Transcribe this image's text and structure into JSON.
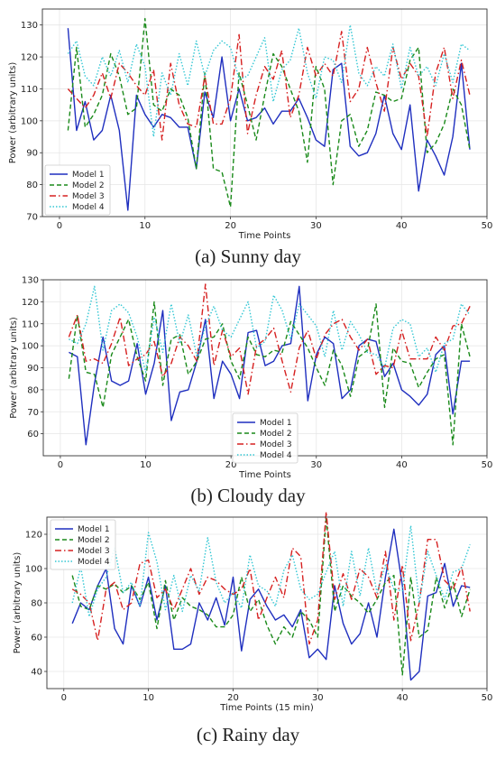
{
  "chart_data": [
    {
      "type": "line",
      "caption": "(a) Sunny day",
      "xlabel": "Time Points",
      "ylabel": "Power (arbitrary units)",
      "xlim": [
        -2,
        50
      ],
      "ylim": [
        70,
        135
      ],
      "xticks": [
        0,
        10,
        20,
        30,
        40,
        50
      ],
      "yticks": [
        70,
        80,
        90,
        100,
        110,
        120,
        130
      ],
      "grid": true,
      "legend_position": "lower-left",
      "x": [
        1,
        2,
        3,
        4,
        5,
        6,
        7,
        8,
        9,
        10,
        11,
        12,
        13,
        14,
        15,
        16,
        17,
        18,
        19,
        20,
        21,
        22,
        23,
        24,
        25,
        26,
        27,
        28,
        29,
        30,
        31,
        32,
        33,
        34,
        35,
        36,
        37,
        38,
        39,
        40,
        41,
        42,
        43,
        44,
        45,
        46,
        47,
        48
      ],
      "series": [
        {
          "name": "Model 1",
          "color": "#1f2fbf",
          "dash": "solid",
          "values": [
            129,
            97,
            106,
            94,
            97,
            108,
            97,
            72,
            108,
            102,
            98,
            102,
            101,
            98,
            98,
            85,
            109,
            101,
            120,
            100,
            110,
            100,
            101,
            104,
            99,
            103,
            103,
            107,
            101,
            94,
            92,
            116,
            118,
            92,
            89,
            90,
            96,
            108,
            96,
            91,
            105,
            78,
            94,
            89,
            83,
            95,
            118,
            91
          ]
        },
        {
          "name": "Model 2",
          "color": "#1a8a1a",
          "dash": "dashed",
          "values": [
            97,
            123,
            98,
            102,
            108,
            121,
            114,
            102,
            104,
            132,
            105,
            103,
            110,
            108,
            101,
            85,
            115,
            85,
            84,
            73,
            115,
            105,
            94,
            108,
            121,
            117,
            110,
            103,
            87,
            117,
            110,
            80,
            100,
            102,
            92,
            97,
            109,
            108,
            106,
            107,
            119,
            123,
            90,
            93,
            99,
            110,
            105,
            91
          ]
        },
        {
          "name": "Model 3",
          "color": "#d62020",
          "dash": "dashdot",
          "values": [
            110,
            107,
            104,
            108,
            115,
            107,
            118,
            115,
            111,
            108,
            116,
            94,
            118,
            105,
            99,
            98,
            114,
            99,
            99,
            107,
            127,
            96,
            108,
            117,
            113,
            122,
            101,
            108,
            123,
            114,
            118,
            114,
            128,
            106,
            110,
            123,
            112,
            103,
            123,
            113,
            118,
            114,
            95,
            115,
            123,
            107,
            119,
            108
          ]
        },
        {
          "name": "Model 4",
          "color": "#33c7d4",
          "dash": "dotted",
          "values": [
            121,
            125,
            114,
            111,
            120,
            114,
            122,
            112,
            124,
            117,
            95,
            115,
            108,
            121,
            111,
            125,
            114,
            122,
            125,
            123,
            113,
            114,
            120,
            126,
            106,
            116,
            119,
            129,
            115,
            107,
            120,
            119,
            112,
            130,
            115,
            111,
            117,
            114,
            124,
            110,
            123,
            114,
            117,
            111,
            121,
            112,
            124,
            122
          ]
        }
      ]
    },
    {
      "type": "line",
      "caption": "(b) Cloudy day",
      "xlabel": "Time Points",
      "ylabel": "Power (arbitrary units)",
      "xlim": [
        -2,
        50
      ],
      "ylim": [
        50,
        130
      ],
      "xticks": [
        0,
        10,
        20,
        30,
        40,
        50
      ],
      "yticks": [
        60,
        70,
        80,
        90,
        100,
        110,
        120,
        130
      ],
      "grid": true,
      "legend_position": "lower-center",
      "x": [
        1,
        2,
        3,
        4,
        5,
        6,
        7,
        8,
        9,
        10,
        11,
        12,
        13,
        14,
        15,
        16,
        17,
        18,
        19,
        20,
        21,
        22,
        23,
        24,
        25,
        26,
        27,
        28,
        29,
        30,
        31,
        32,
        33,
        34,
        35,
        36,
        37,
        38,
        39,
        40,
        41,
        42,
        43,
        44,
        45,
        46,
        47,
        48
      ],
      "series": [
        {
          "name": "Model 1",
          "color": "#1f2fbf",
          "dash": "solid",
          "values": [
            97,
            95,
            55,
            83,
            104,
            84,
            82,
            84,
            101,
            78,
            92,
            116,
            66,
            79,
            80,
            93,
            112,
            76,
            93,
            87,
            76,
            106,
            107,
            91,
            93,
            100,
            101,
            127,
            75,
            96,
            104,
            101,
            76,
            80,
            100,
            103,
            102,
            86,
            92,
            80,
            77,
            73,
            78,
            96,
            100,
            69,
            93,
            93
          ]
        },
        {
          "name": "Model 2",
          "color": "#1a8a1a",
          "dash": "dashed",
          "values": [
            85,
            114,
            88,
            87,
            72,
            96,
            104,
            112,
            95,
            84,
            120,
            82,
            103,
            105,
            87,
            93,
            103,
            104,
            110,
            93,
            85,
            104,
            96,
            95,
            98,
            97,
            111,
            105,
            99,
            90,
            82,
            98,
            91,
            77,
            95,
            98,
            119,
            72,
            99,
            93,
            92,
            81,
            88,
            94,
            96,
            55,
            110,
            95
          ]
        },
        {
          "name": "Model 3",
          "color": "#d62020",
          "dash": "dashdot",
          "values": [
            104,
            114,
            93,
            94,
            92,
            101,
            113,
            91,
            94,
            96,
            102,
            86,
            92,
            104,
            100,
            93,
            128,
            91,
            107,
            95,
            99,
            78,
            100,
            103,
            108,
            93,
            79,
            99,
            107,
            94,
            105,
            110,
            112,
            104,
            98,
            103,
            87,
            91,
            90,
            107,
            94,
            94,
            94,
            104,
            98,
            109,
            110,
            118
          ]
        },
        {
          "name": "Model 4",
          "color": "#33c7d4",
          "dash": "dotted",
          "values": [
            103,
            101,
            110,
            127,
            98,
            116,
            119,
            115,
            104,
            88,
            113,
            97,
            119,
            101,
            114,
            95,
            109,
            118,
            107,
            104,
            112,
            120,
            99,
            102,
            123,
            116,
            103,
            119,
            114,
            109,
            95,
            116,
            98,
            111,
            105,
            97,
            96,
            90,
            108,
            112,
            110,
            95,
            99,
            88,
            101,
            103,
            119,
            114
          ]
        }
      ]
    },
    {
      "type": "line",
      "caption": "(c) Rainy day",
      "xlabel": "Time Points (15 min)",
      "ylabel": "Power (arbitrary units)",
      "xlim": [
        -2,
        50
      ],
      "ylim": [
        30,
        130
      ],
      "xticks": [
        0,
        10,
        20,
        30,
        40,
        50
      ],
      "yticks": [
        40,
        60,
        80,
        100,
        120
      ],
      "grid": true,
      "legend_position": "top-left",
      "x": [
        1,
        2,
        3,
        4,
        5,
        6,
        7,
        8,
        9,
        10,
        11,
        12,
        13,
        14,
        15,
        16,
        17,
        18,
        19,
        20,
        21,
        22,
        23,
        24,
        25,
        26,
        27,
        28,
        29,
        30,
        31,
        32,
        33,
        34,
        35,
        36,
        37,
        38,
        39,
        40,
        41,
        42,
        43,
        44,
        45,
        46,
        47,
        48
      ],
      "series": [
        {
          "name": "Model 1",
          "color": "#1f2fbf",
          "dash": "solid",
          "values": [
            68,
            80,
            76,
            90,
            100,
            65,
            56,
            90,
            78,
            95,
            70,
            90,
            53,
            53,
            56,
            80,
            70,
            83,
            67,
            95,
            52,
            82,
            88,
            78,
            70,
            73,
            66,
            76,
            48,
            53,
            47,
            90,
            68,
            56,
            62,
            80,
            60,
            95,
            123,
            90,
            35,
            40,
            84,
            86,
            103,
            78,
            90,
            89
          ]
        },
        {
          "name": "Model 2",
          "color": "#1a8a1a",
          "dash": "dashed",
          "values": [
            96,
            78,
            76,
            90,
            88,
            91,
            86,
            90,
            82,
            92,
            65,
            93,
            70,
            83,
            78,
            76,
            73,
            66,
            66,
            73,
            95,
            75,
            82,
            67,
            56,
            66,
            60,
            75,
            70,
            60,
            130,
            75,
            90,
            84,
            80,
            74,
            82,
            92,
            96,
            38,
            95,
            60,
            64,
            95,
            77,
            92,
            72,
            88
          ]
        },
        {
          "name": "Model 3",
          "color": "#d62020",
          "dash": "dashdot",
          "values": [
            88,
            85,
            80,
            58,
            88,
            92,
            76,
            80,
            103,
            105,
            83,
            88,
            76,
            88,
            100,
            85,
            95,
            93,
            88,
            85,
            88,
            100,
            70,
            83,
            95,
            83,
            112,
            107,
            56,
            70,
            133,
            82,
            97,
            82,
            100,
            95,
            83,
            110,
            70,
            102,
            58,
            80,
            117,
            117,
            93,
            88,
            101,
            75
          ]
        },
        {
          "name": "Model 4",
          "color": "#33c7d4",
          "dash": "dotted",
          "values": [
            80,
            101,
            72,
            88,
            95,
            112,
            86,
            92,
            78,
            121,
            104,
            76,
            96,
            75,
            96,
            87,
            118,
            92,
            80,
            86,
            77,
            108,
            90,
            87,
            78,
            99,
            108,
            88,
            82,
            85,
            98,
            110,
            78,
            110,
            84,
            112,
            86,
            102,
            88,
            87,
            125,
            80,
            110,
            96,
            82,
            98,
            100,
            114
          ]
        }
      ]
    }
  ]
}
